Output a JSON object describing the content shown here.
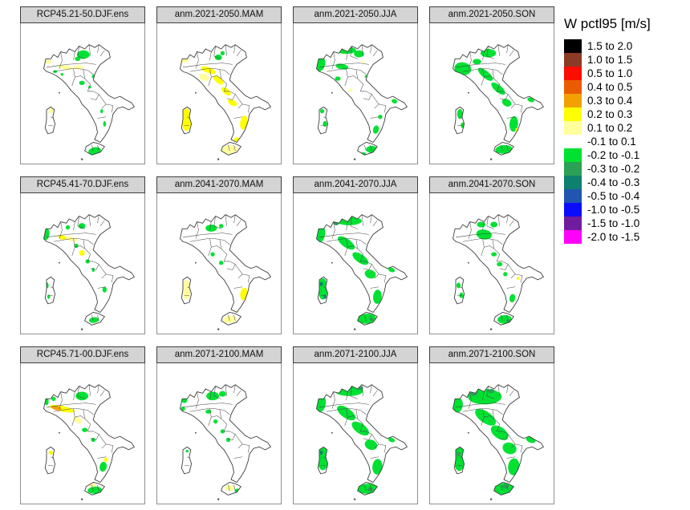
{
  "legend": {
    "title": "W pctl95 [m/s]",
    "entries": [
      {
        "label": "1.5 to 2.0",
        "color": "#000000"
      },
      {
        "label": "1.0 to 1.5",
        "color": "#8b3a26"
      },
      {
        "label": "0.5 to 1.0",
        "color": "#fb0d00"
      },
      {
        "label": "0.4 to 0.5",
        "color": "#ea5c00"
      },
      {
        "label": "0.3 to 0.4",
        "color": "#f2a100"
      },
      {
        "label": "0.2 to 0.3",
        "color": "#ffff00"
      },
      {
        "label": "0.1 to 0.2",
        "color": "#ffff9c"
      },
      {
        "label": "-0.1 to 0.1",
        "color": "#ffffff"
      },
      {
        "label": "-0.2 to -0.1",
        "color": "#00e132"
      },
      {
        "label": "-0.3 to -0.2",
        "color": "#2ba155"
      },
      {
        "label": "-0.4 to -0.3",
        "color": "#0d8070"
      },
      {
        "label": "-0.5 to -0.4",
        "color": "#2055b0"
      },
      {
        "label": "-1.0 to -0.5",
        "color": "#0a0cff"
      },
      {
        "label": "-1.5 to -1.0",
        "color": "#6f1d9e"
      },
      {
        "label": "-2.0 to -1.5",
        "color": "#ff00fb"
      }
    ]
  },
  "palette": {
    "G": "#00e132",
    "G2": "#2ba155",
    "T": "#0d8070",
    "Y": "#ffff00",
    "PY": "#ffff9c",
    "O": "#f2a100",
    "OR": "#ea5c00"
  },
  "panels": [
    {
      "title": "RCP45.21-50.DJF.ens",
      "patches": [
        [
          86,
          42,
          9,
          6,
          0,
          "G"
        ],
        [
          78,
          48,
          4,
          3,
          0,
          "G"
        ],
        [
          36,
          52,
          5,
          3,
          0,
          "PY"
        ],
        [
          60,
          60,
          11,
          3,
          10,
          "PY"
        ],
        [
          79,
          60,
          7,
          3,
          5,
          "PY"
        ],
        [
          46,
          66,
          3,
          2,
          0,
          "G"
        ],
        [
          56,
          70,
          2,
          2,
          0,
          "G"
        ],
        [
          84,
          82,
          4,
          3,
          0,
          "G"
        ],
        [
          101,
          73,
          3,
          3,
          0,
          "G"
        ],
        [
          95,
          88,
          2,
          2,
          0,
          "G"
        ],
        [
          112,
          122,
          2,
          3,
          0,
          "G"
        ],
        [
          116,
          140,
          2,
          4,
          0,
          "G"
        ],
        [
          102,
          178,
          9,
          5,
          -10,
          "G"
        ],
        [
          40,
          122,
          3,
          4,
          0,
          "PY"
        ]
      ]
    },
    {
      "title": "anm.2021-2050.MAM",
      "patches": [
        [
          84,
          46,
          5,
          4,
          0,
          "G"
        ],
        [
          90,
          40,
          3,
          3,
          0,
          "G"
        ],
        [
          36,
          50,
          5,
          4,
          0,
          "PY"
        ],
        [
          64,
          74,
          7,
          5,
          20,
          "PY"
        ],
        [
          70,
          64,
          11,
          4,
          20,
          "Y"
        ],
        [
          84,
          78,
          9,
          4,
          40,
          "Y"
        ],
        [
          95,
          94,
          8,
          4,
          40,
          "Y"
        ],
        [
          104,
          110,
          7,
          4,
          30,
          "Y"
        ],
        [
          120,
          138,
          5,
          10,
          10,
          "Y"
        ],
        [
          110,
          162,
          4,
          3,
          0,
          "Y"
        ],
        [
          100,
          176,
          11,
          6,
          -5,
          "PY"
        ],
        [
          39,
          134,
          7,
          16,
          0,
          "Y"
        ]
      ]
    },
    {
      "title": "anm.2021-2050.JJA",
      "patches": [
        [
          72,
          36,
          14,
          5,
          0,
          "G"
        ],
        [
          90,
          41,
          7,
          5,
          0,
          "G"
        ],
        [
          36,
          56,
          6,
          10,
          15,
          "G"
        ],
        [
          66,
          59,
          9,
          4,
          10,
          "G"
        ],
        [
          60,
          76,
          4,
          3,
          0,
          "G"
        ],
        [
          96,
          52,
          2,
          2,
          0,
          "PY"
        ],
        [
          78,
          92,
          3,
          2,
          0,
          "PY"
        ],
        [
          101,
          73,
          3,
          2,
          0,
          "G"
        ],
        [
          140,
          108,
          4,
          3,
          20,
          "G"
        ],
        [
          120,
          130,
          3,
          3,
          0,
          "G"
        ],
        [
          114,
          148,
          4,
          6,
          15,
          "G"
        ],
        [
          108,
          176,
          8,
          5,
          0,
          "G"
        ],
        [
          96,
          182,
          4,
          2,
          0,
          "G"
        ],
        [
          38,
          122,
          3,
          3,
          0,
          "G"
        ],
        [
          42,
          140,
          3,
          4,
          0,
          "G"
        ]
      ]
    },
    {
      "title": "anm.2021-2050.SON",
      "patches": [
        [
          44,
          62,
          12,
          9,
          10,
          "G"
        ],
        [
          80,
          40,
          11,
          6,
          0,
          "G"
        ],
        [
          64,
          52,
          6,
          4,
          0,
          "G"
        ],
        [
          76,
          70,
          13,
          5,
          40,
          "G"
        ],
        [
          94,
          90,
          12,
          5,
          40,
          "G"
        ],
        [
          106,
          110,
          7,
          5,
          30,
          "G"
        ],
        [
          116,
          140,
          6,
          11,
          5,
          "G"
        ],
        [
          120,
          148,
          2,
          2,
          0,
          "Y"
        ],
        [
          102,
          176,
          12,
          6,
          -5,
          "G"
        ],
        [
          40,
          126,
          4,
          7,
          0,
          "G"
        ],
        [
          44,
          142,
          3,
          4,
          0,
          "G"
        ],
        [
          140,
          106,
          5,
          3,
          20,
          "G"
        ]
      ]
    },
    {
      "title": "RCP45.41-70.DJF.ens",
      "patches": [
        [
          34,
          56,
          4,
          8,
          10,
          "G"
        ],
        [
          84,
          44,
          5,
          4,
          0,
          "G"
        ],
        [
          64,
          46,
          3,
          3,
          0,
          "G"
        ],
        [
          68,
          62,
          10,
          3,
          12,
          "PY"
        ],
        [
          56,
          60,
          6,
          3,
          15,
          "Y"
        ],
        [
          84,
          82,
          4,
          4,
          0,
          "Y"
        ],
        [
          76,
          72,
          3,
          3,
          0,
          "G"
        ],
        [
          92,
          94,
          3,
          3,
          0,
          "G"
        ],
        [
          100,
          106,
          2,
          3,
          0,
          "G"
        ],
        [
          116,
          134,
          3,
          4,
          0,
          "G"
        ],
        [
          101,
          177,
          7,
          4,
          -8,
          "G"
        ],
        [
          35,
          128,
          2,
          4,
          0,
          "G"
        ],
        [
          37,
          144,
          2,
          3,
          0,
          "G"
        ]
      ]
    },
    {
      "title": "anm.2041-2070.MAM",
      "patches": [
        [
          74,
          47,
          8,
          5,
          0,
          "G"
        ],
        [
          88,
          44,
          3,
          3,
          0,
          "G"
        ],
        [
          76,
          84,
          3,
          3,
          0,
          "G"
        ],
        [
          88,
          96,
          3,
          3,
          0,
          "G"
        ],
        [
          120,
          140,
          5,
          9,
          8,
          "Y"
        ],
        [
          100,
          176,
          10,
          5,
          -5,
          "PY"
        ],
        [
          112,
          166,
          3,
          3,
          0,
          "Y"
        ],
        [
          39,
          134,
          6,
          14,
          0,
          "PY"
        ]
      ]
    },
    {
      "title": "anm.2041-2070.JJA",
      "patches": [
        [
          76,
          37,
          18,
          6,
          0,
          "G"
        ],
        [
          58,
          40,
          4,
          3,
          0,
          "G2"
        ],
        [
          36,
          56,
          6,
          12,
          10,
          "G"
        ],
        [
          72,
          68,
          14,
          6,
          35,
          "G"
        ],
        [
          92,
          90,
          13,
          6,
          35,
          "G"
        ],
        [
          106,
          112,
          8,
          6,
          20,
          "G"
        ],
        [
          116,
          144,
          6,
          10,
          5,
          "G"
        ],
        [
          136,
          106,
          5,
          3,
          20,
          "G"
        ],
        [
          101,
          175,
          13,
          7,
          -5,
          "G"
        ],
        [
          108,
          176,
          3,
          2,
          0,
          "G2"
        ],
        [
          39,
          133,
          7,
          15,
          0,
          "G"
        ],
        [
          37,
          126,
          2,
          3,
          0,
          "T"
        ],
        [
          42,
          144,
          2,
          3,
          0,
          "T"
        ]
      ]
    },
    {
      "title": "anm.2041-2070.SON",
      "patches": [
        [
          70,
          42,
          6,
          4,
          0,
          "G"
        ],
        [
          88,
          42,
          5,
          4,
          0,
          "G"
        ],
        [
          74,
          56,
          11,
          7,
          10,
          "G"
        ],
        [
          88,
          84,
          4,
          3,
          0,
          "G"
        ],
        [
          96,
          98,
          4,
          3,
          0,
          "G"
        ],
        [
          104,
          112,
          3,
          3,
          0,
          "G"
        ],
        [
          122,
          118,
          2,
          2,
          0,
          "Y"
        ],
        [
          114,
          146,
          4,
          6,
          10,
          "G"
        ],
        [
          103,
          176,
          10,
          6,
          -5,
          "G"
        ],
        [
          108,
          178,
          3,
          2,
          0,
          "G2"
        ],
        [
          38,
          128,
          3,
          4,
          0,
          "G"
        ],
        [
          42,
          142,
          3,
          4,
          0,
          "G"
        ]
      ]
    },
    {
      "title": "RCP45.71-00.DJF.ens",
      "patches": [
        [
          56,
          62,
          18,
          4,
          12,
          "Y"
        ],
        [
          48,
          61,
          7,
          3,
          12,
          "O"
        ],
        [
          84,
          44,
          9,
          6,
          0,
          "G"
        ],
        [
          34,
          52,
          3,
          5,
          0,
          "G"
        ],
        [
          44,
          48,
          3,
          3,
          0,
          "G"
        ],
        [
          78,
          78,
          7,
          4,
          30,
          "PY"
        ],
        [
          88,
          92,
          4,
          3,
          0,
          "G"
        ],
        [
          100,
          106,
          3,
          3,
          0,
          "G"
        ],
        [
          114,
          144,
          5,
          7,
          10,
          "G"
        ],
        [
          118,
          134,
          3,
          3,
          0,
          "Y"
        ],
        [
          102,
          177,
          10,
          5,
          -5,
          "G"
        ],
        [
          98,
          170,
          5,
          3,
          0,
          "PY"
        ],
        [
          40,
          124,
          3,
          3,
          0,
          "Y"
        ]
      ]
    },
    {
      "title": "anm.2071-2100.MAM",
      "patches": [
        [
          76,
          44,
          9,
          6,
          0,
          "G"
        ],
        [
          90,
          41,
          5,
          4,
          0,
          "G"
        ],
        [
          36,
          50,
          4,
          4,
          0,
          "G"
        ],
        [
          34,
          62,
          3,
          3,
          0,
          "G"
        ],
        [
          70,
          66,
          4,
          3,
          0,
          "G"
        ],
        [
          80,
          80,
          3,
          3,
          0,
          "G"
        ],
        [
          90,
          94,
          3,
          3,
          0,
          "G"
        ],
        [
          98,
          106,
          3,
          3,
          0,
          "G"
        ],
        [
          100,
          174,
          7,
          4,
          -5,
          "PY"
        ],
        [
          111,
          178,
          4,
          3,
          0,
          "G"
        ],
        [
          40,
          122,
          2,
          2,
          0,
          "G"
        ]
      ]
    },
    {
      "title": "anm.2071-2100.JJA",
      "patches": [
        [
          76,
          37,
          20,
          7,
          0,
          "G"
        ],
        [
          56,
          36,
          4,
          3,
          0,
          "T"
        ],
        [
          92,
          33,
          4,
          3,
          0,
          "G2"
        ],
        [
          36,
          55,
          7,
          12,
          10,
          "G"
        ],
        [
          72,
          68,
          15,
          7,
          35,
          "G"
        ],
        [
          92,
          90,
          14,
          7,
          35,
          "G"
        ],
        [
          107,
          113,
          9,
          7,
          20,
          "G"
        ],
        [
          116,
          144,
          7,
          11,
          5,
          "G"
        ],
        [
          136,
          106,
          5,
          3,
          20,
          "G"
        ],
        [
          102,
          175,
          14,
          7,
          -5,
          "G"
        ],
        [
          106,
          176,
          4,
          3,
          0,
          "G2"
        ],
        [
          39,
          133,
          8,
          16,
          0,
          "G"
        ],
        [
          37,
          124,
          2,
          3,
          0,
          "T"
        ],
        [
          112,
          180,
          2,
          2,
          0,
          "Y"
        ]
      ]
    },
    {
      "title": "anm.2071-2100.SON",
      "patches": [
        [
          75,
          45,
          24,
          11,
          0,
          "G"
        ],
        [
          60,
          40,
          5,
          4,
          0,
          "G2"
        ],
        [
          84,
          37,
          5,
          3,
          0,
          "G2"
        ],
        [
          36,
          57,
          8,
          11,
          10,
          "G"
        ],
        [
          76,
          74,
          17,
          8,
          35,
          "G"
        ],
        [
          96,
          96,
          14,
          8,
          35,
          "G"
        ],
        [
          110,
          118,
          10,
          8,
          20,
          "G"
        ],
        [
          116,
          144,
          8,
          12,
          5,
          "G"
        ],
        [
          140,
          106,
          7,
          4,
          20,
          "G"
        ],
        [
          102,
          175,
          14,
          8,
          -5,
          "G"
        ],
        [
          104,
          172,
          5,
          3,
          0,
          "G2"
        ],
        [
          39,
          133,
          8,
          17,
          0,
          "G"
        ],
        [
          38,
          126,
          3,
          3,
          0,
          "G2"
        ]
      ]
    }
  ],
  "chart_data": {
    "type": "heatmap",
    "subtype": "choropleth-map-small-multiples",
    "title": "W pctl95 [m/s]",
    "panel_titles": [
      "RCP45.21-50.DJF.ens",
      "anm.2021-2050.MAM",
      "anm.2021-2050.JJA",
      "anm.2021-2050.SON",
      "RCP45.41-70.DJF.ens",
      "anm.2041-2070.MAM",
      "anm.2041-2070.JJA",
      "anm.2041-2070.SON",
      "RCP45.71-00.DJF.ens",
      "anm.2071-2100.MAM",
      "anm.2071-2100.JJA",
      "anm.2071-2100.SON"
    ],
    "legend_bins": [
      "1.5 to 2.0",
      "1.0 to 1.5",
      "0.5 to 1.0",
      "0.4 to 0.5",
      "0.3 to 0.4",
      "0.2 to 0.3",
      "0.1 to 0.2",
      "-0.1 to 0.1",
      "-0.2 to -0.1",
      "-0.3 to -0.2",
      "-0.4 to -0.3",
      "-0.5 to -0.4",
      "-1.0 to -0.5",
      "-1.5 to -1.0",
      "-2.0 to -1.5"
    ],
    "legend_position": "right",
    "grid": "3 rows x 4 columns"
  }
}
